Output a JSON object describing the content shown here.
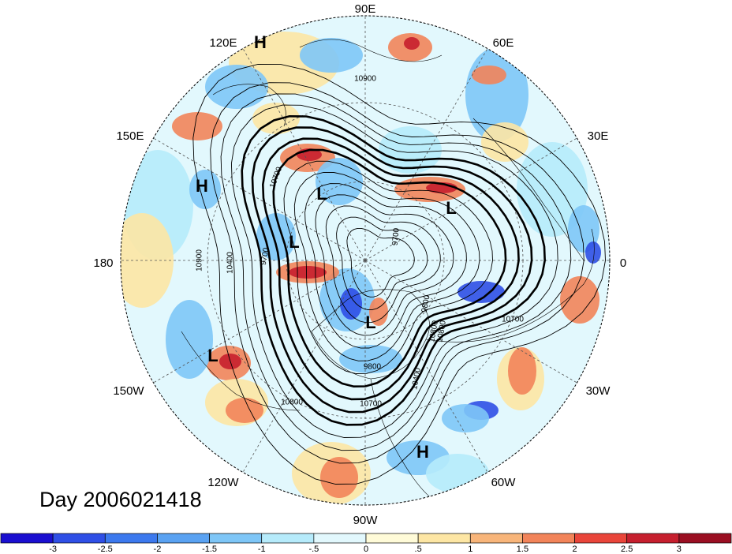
{
  "title": "Day 2006021418",
  "longitude_labels": [
    {
      "id": "lon-90e",
      "text": "90E"
    },
    {
      "id": "lon-60e",
      "text": "60E"
    },
    {
      "id": "lon-30e",
      "text": "30E"
    },
    {
      "id": "lon-0",
      "text": "0"
    },
    {
      "id": "lon-30w",
      "text": "30W"
    },
    {
      "id": "lon-60w",
      "text": "60W"
    },
    {
      "id": "lon-90w",
      "text": "90W"
    },
    {
      "id": "lon-120w",
      "text": "120W"
    },
    {
      "id": "lon-150w",
      "text": "150W"
    },
    {
      "id": "lon-180",
      "text": "180"
    },
    {
      "id": "lon-150e",
      "text": "150E"
    },
    {
      "id": "lon-120e",
      "text": "120E"
    }
  ],
  "contour_labels": [
    "10900",
    "10700",
    "10900",
    "10400",
    "9700",
    "9700",
    "9800",
    "10800",
    "10400",
    "10800",
    "10700",
    "9800",
    "10700",
    "10800"
  ],
  "pressure_markers": [
    {
      "id": "h-top",
      "text": "H"
    },
    {
      "id": "h-left",
      "text": "H"
    },
    {
      "id": "h-bottom",
      "text": "H"
    },
    {
      "id": "l-1",
      "text": "L"
    },
    {
      "id": "l-2",
      "text": "L"
    },
    {
      "id": "l-3",
      "text": "L"
    },
    {
      "id": "l-4",
      "text": "L"
    },
    {
      "id": "l-5",
      "text": "L"
    }
  ],
  "colorbar": {
    "tick_labels": [
      "-3",
      "-2.5",
      "-2",
      "-1.5",
      "-1",
      "-.5",
      "0",
      ".5",
      "1",
      "1.5",
      "2",
      "2.5",
      "3"
    ],
    "colors": [
      "#1a0fd0",
      "#2f4fe6",
      "#3c79ee",
      "#5aa2f2",
      "#7ec6f7",
      "#b6ebfb",
      "#e2f8fd",
      "#fffbd8",
      "#fde6a4",
      "#f8b57a",
      "#f2845a",
      "#e9453a",
      "#c61f2e",
      "#9a0f22"
    ]
  },
  "colors": {
    "cold_strong": "#2f4fe6",
    "cold": "#7ec6f7",
    "cold_light": "#b6ebfb",
    "neutral": "#e2f8fd",
    "warm_light": "#fde6a4",
    "warm": "#f2845a",
    "warm_strong": "#c61f2e"
  }
}
